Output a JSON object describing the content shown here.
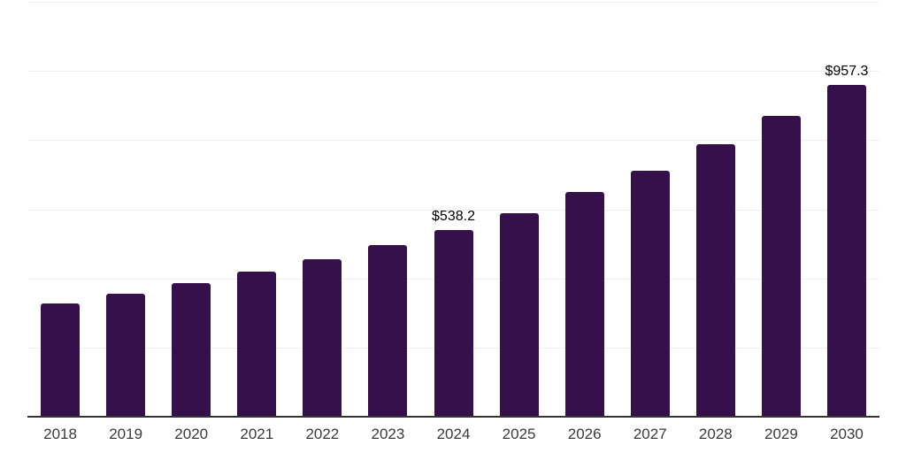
{
  "chart_data": {
    "type": "bar",
    "title": "",
    "xlabel": "",
    "ylabel": "",
    "categories": [
      "2018",
      "2019",
      "2020",
      "2021",
      "2022",
      "2023",
      "2024",
      "2025",
      "2026",
      "2027",
      "2028",
      "2029",
      "2030"
    ],
    "values": [
      324,
      352,
      383,
      416,
      452,
      493,
      538.2,
      587,
      648,
      709,
      786,
      868,
      957.3
    ],
    "value_labels": {
      "2024": "$538.2",
      "2030": "$957.3"
    },
    "ylim": [
      0,
      1200
    ],
    "gridline_step": 200,
    "grid": true,
    "legend": false,
    "y_axis_tick_labels_visible": false,
    "colors": {
      "bar": "#36104B",
      "axis_line": "#333333",
      "gridline": "#EFEFEF",
      "tick_label": "#3A3A3A",
      "value_label": "#000000",
      "background": "#FFFFFF"
    }
  }
}
